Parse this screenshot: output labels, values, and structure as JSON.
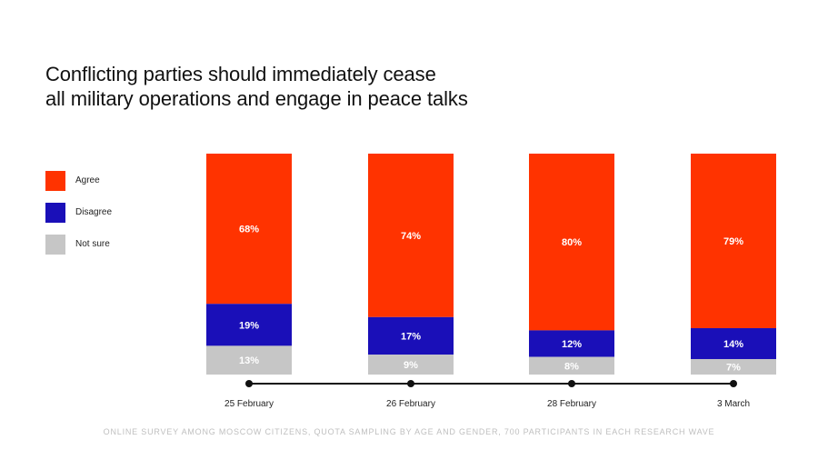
{
  "title_line1": "Conflicting parties should immediately cease",
  "title_line2": "all military operations and engage in peace talks",
  "legend": [
    {
      "label": "Agree",
      "color": "#ff3300"
    },
    {
      "label": "Disagree",
      "color": "#1a0fb8"
    },
    {
      "label": "Not sure",
      "color": "#c6c6c6"
    }
  ],
  "footnote": "ONLINE SURVEY AMONG MOSCOW CITIZENS, QUOTA SAMPLING BY AGE AND GENDER, 700 PARTICIPANTS IN EACH RESEARCH WAVE",
  "chart_data": {
    "type": "bar",
    "stacked": true,
    "title": "Conflicting parties should immediately cease all military operations and engage in peace talks",
    "categories": [
      "25 February",
      "26 February",
      "28 February",
      "3 March"
    ],
    "series": [
      {
        "name": "Agree",
        "color": "#ff3300",
        "values": [
          68,
          74,
          80,
          79
        ],
        "labels": [
          "68%",
          "74%",
          "80%",
          "79%"
        ]
      },
      {
        "name": "Disagree",
        "color": "#1a0fb8",
        "values": [
          19,
          17,
          12,
          14
        ],
        "labels": [
          "19%",
          "17%",
          "12%",
          "14%"
        ]
      },
      {
        "name": "Not sure",
        "color": "#c6c6c6",
        "values": [
          13,
          9,
          8,
          7
        ],
        "labels": [
          "13%",
          "9%",
          "8%",
          "7%"
        ]
      }
    ],
    "ylim": [
      0,
      100
    ],
    "legend_position": "left"
  }
}
